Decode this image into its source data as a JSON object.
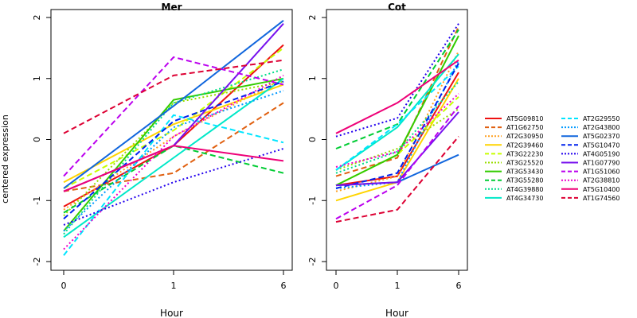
{
  "figure": {
    "ylabel": "centered expression"
  },
  "chart_data": [
    {
      "type": "line",
      "title": "Mer",
      "xlabel": "Hour",
      "ylabel": "centered expression",
      "categories": [
        "0",
        "1",
        "6"
      ],
      "ylim": [
        -2.0,
        2.0
      ],
      "yticks": [
        "-2",
        "-1",
        "0",
        "1",
        "2"
      ],
      "grid": false,
      "series": [
        {
          "name": "AT5G09810",
          "values": [
            -1.1,
            -0.1,
            1.55
          ]
        },
        {
          "name": "AT1G62750",
          "values": [
            -0.85,
            -0.55,
            0.6
          ]
        },
        {
          "name": "AT2G30950",
          "values": [
            -1.15,
            0.05,
            1.0
          ]
        },
        {
          "name": "AT2G39460",
          "values": [
            -0.7,
            0.25,
            0.9
          ]
        },
        {
          "name": "AT3G22230",
          "values": [
            -0.8,
            0.15,
            1.5
          ]
        },
        {
          "name": "AT3G25520",
          "values": [
            -1.25,
            0.6,
            0.95
          ]
        },
        {
          "name": "AT3G53430",
          "values": [
            -1.5,
            0.65,
            1.0
          ]
        },
        {
          "name": "AT3G55280",
          "values": [
            -1.2,
            -0.1,
            -0.55
          ]
        },
        {
          "name": "AT4G39880",
          "values": [
            -1.55,
            0.6,
            1.15
          ]
        },
        {
          "name": "AT4G34730",
          "values": [
            -1.6,
            -0.3,
            1.0
          ]
        },
        {
          "name": "AT2G29550",
          "values": [
            -1.9,
            0.4,
            -0.05
          ]
        },
        {
          "name": "AT2G43800",
          "values": [
            -1.5,
            0.2,
            0.8
          ]
        },
        {
          "name": "AT5G02370",
          "values": [
            -0.8,
            0.55,
            1.95
          ]
        },
        {
          "name": "AT5G10470",
          "values": [
            -1.3,
            0.3,
            0.95
          ]
        },
        {
          "name": "AT4G05190",
          "values": [
            -1.4,
            -0.7,
            -0.15
          ]
        },
        {
          "name": "AT1G07790",
          "values": [
            -0.85,
            -0.1,
            1.9
          ]
        },
        {
          "name": "AT1G51060",
          "values": [
            -0.6,
            1.35,
            0.9
          ]
        },
        {
          "name": "AT2G38810",
          "values": [
            -1.8,
            0.05,
            1.05
          ]
        },
        {
          "name": "AT5G10400",
          "values": [
            -0.85,
            -0.1,
            -0.35
          ]
        },
        {
          "name": "AT1G74560",
          "values": [
            0.1,
            1.05,
            1.3
          ]
        }
      ]
    },
    {
      "type": "line",
      "title": "Cot",
      "xlabel": "Hour",
      "ylabel": "",
      "categories": [
        "0",
        "1",
        "6"
      ],
      "ylim": [
        -2.0,
        2.0
      ],
      "yticks": [
        "-2",
        "-1",
        "0",
        "1",
        "2"
      ],
      "grid": false,
      "series": [
        {
          "name": "AT5G09810",
          "values": [
            -0.75,
            -0.6,
            1.1
          ]
        },
        {
          "name": "AT1G62750",
          "values": [
            -0.6,
            -0.3,
            1.85
          ]
        },
        {
          "name": "AT2G30950",
          "values": [
            -0.85,
            -0.6,
            1.45
          ]
        },
        {
          "name": "AT2G39460",
          "values": [
            -1.0,
            -0.7,
            1.0
          ]
        },
        {
          "name": "AT3G22230",
          "values": [
            -0.75,
            -0.25,
            0.7
          ]
        },
        {
          "name": "AT3G25520",
          "values": [
            -0.5,
            -0.15,
            0.5
          ]
        },
        {
          "name": "AT3G53430",
          "values": [
            -0.75,
            -0.25,
            1.7
          ]
        },
        {
          "name": "AT3G55280",
          "values": [
            -0.15,
            0.25,
            1.8
          ]
        },
        {
          "name": "AT4G39880",
          "values": [
            -0.55,
            -0.2,
            0.95
          ]
        },
        {
          "name": "AT4G34730",
          "values": [
            -0.5,
            0.2,
            1.4
          ]
        },
        {
          "name": "AT2G29550",
          "values": [
            -0.5,
            0.25,
            1.2
          ]
        },
        {
          "name": "AT2G43800",
          "values": [
            -0.8,
            -0.7,
            1.3
          ]
        },
        {
          "name": "AT5G02370",
          "values": [
            -0.75,
            -0.7,
            -0.25
          ]
        },
        {
          "name": "AT5G10470",
          "values": [
            -0.8,
            -0.55,
            1.25
          ]
        },
        {
          "name": "AT4G05190",
          "values": [
            0.05,
            0.35,
            1.9
          ]
        },
        {
          "name": "AT1G07790",
          "values": [
            -0.75,
            -0.7,
            0.45
          ]
        },
        {
          "name": "AT1G51060",
          "values": [
            -1.3,
            -0.75,
            0.55
          ]
        },
        {
          "name": "AT2G38810",
          "values": [
            -0.45,
            -0.2,
            0.75
          ]
        },
        {
          "name": "AT5G10400",
          "values": [
            0.1,
            0.6,
            1.3
          ]
        },
        {
          "name": "AT1G74560",
          "values": [
            -1.35,
            -1.15,
            0.05
          ]
        }
      ]
    }
  ],
  "legend": {
    "placement": "right",
    "items": [
      {
        "name": "AT5G09810",
        "color": "#ee1111",
        "dash": "solid"
      },
      {
        "name": "AT1G62750",
        "color": "#e06010",
        "dash": "dashed"
      },
      {
        "name": "AT2G30950",
        "color": "#ffa020",
        "dash": "dotted"
      },
      {
        "name": "AT2G39460",
        "color": "#ffd400",
        "dash": "solid"
      },
      {
        "name": "AT3G22230",
        "color": "#c8ff00",
        "dash": "dashed"
      },
      {
        "name": "AT3G25520",
        "color": "#99dd00",
        "dash": "dotted"
      },
      {
        "name": "AT3G53430",
        "color": "#33cc00",
        "dash": "solid"
      },
      {
        "name": "AT3G55280",
        "color": "#00cc33",
        "dash": "dashed"
      },
      {
        "name": "AT4G39880",
        "color": "#00dd88",
        "dash": "dotted"
      },
      {
        "name": "AT4G34730",
        "color": "#00e8c8",
        "dash": "solid"
      },
      {
        "name": "AT2G29550",
        "color": "#00e5ff",
        "dash": "dashed"
      },
      {
        "name": "AT2G43800",
        "color": "#0099ff",
        "dash": "dotted"
      },
      {
        "name": "AT5G02370",
        "color": "#1166dd",
        "dash": "solid"
      },
      {
        "name": "AT5G10470",
        "color": "#0022ee",
        "dash": "dashed"
      },
      {
        "name": "AT4G05190",
        "color": "#2200ee",
        "dash": "dotted"
      },
      {
        "name": "AT1G07790",
        "color": "#7711ee",
        "dash": "solid"
      },
      {
        "name": "AT1G51060",
        "color": "#bb00ee",
        "dash": "dashed"
      },
      {
        "name": "AT2G38810",
        "color": "#ee00cc",
        "dash": "dotted"
      },
      {
        "name": "AT5G10400",
        "color": "#ee0077",
        "dash": "solid"
      },
      {
        "name": "AT1G74560",
        "color": "#dd0033",
        "dash": "dashed"
      }
    ]
  }
}
